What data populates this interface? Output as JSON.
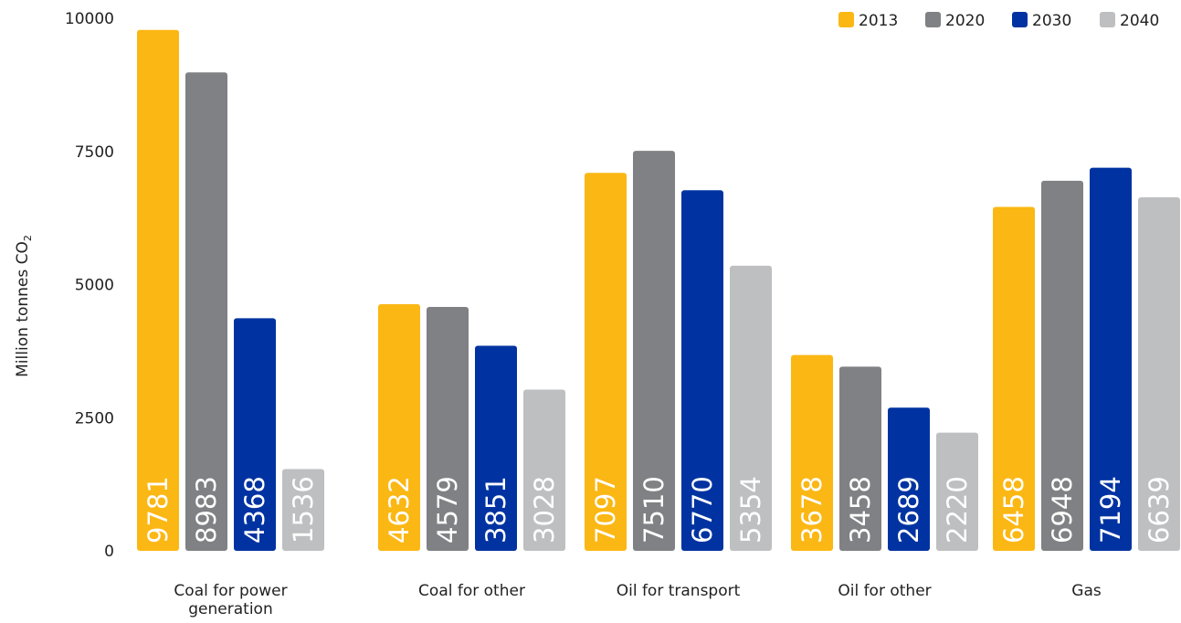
{
  "chart_data": {
    "type": "bar",
    "title": "",
    "xlabel": "",
    "ylabel": "Million tonnes CO",
    "ylabel_subscript": "2",
    "ylim": [
      0,
      10000
    ],
    "yticks": [
      "0",
      "2500",
      "5000",
      "7500",
      "10000"
    ],
    "grid": false,
    "legend": "top-right",
    "categories": [
      [
        "Coal for power",
        "generation"
      ],
      [
        "Coal for other"
      ],
      [
        "Oil for transport"
      ],
      [
        "Oil for other"
      ],
      [
        "Gas"
      ]
    ],
    "series": [
      {
        "name": "2013",
        "color": "#FBB714",
        "values": [
          9781,
          4632,
          7097,
          3678,
          6458
        ]
      },
      {
        "name": "2020",
        "color": "#808184",
        "values": [
          8983,
          4579,
          7510,
          3458,
          6948
        ]
      },
      {
        "name": "2030",
        "color": "#0033A1",
        "values": [
          4368,
          3851,
          6770,
          2689,
          7194
        ]
      },
      {
        "name": "2040",
        "color": "#BEBFC1",
        "values": [
          1536,
          3028,
          5354,
          2220,
          6639
        ]
      }
    ]
  }
}
